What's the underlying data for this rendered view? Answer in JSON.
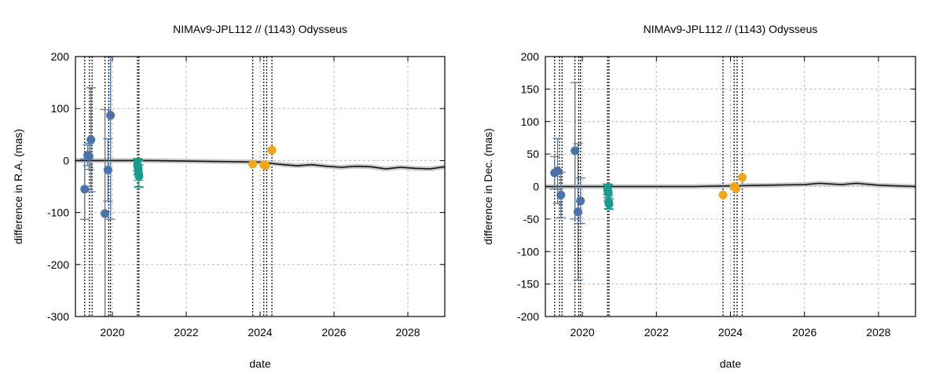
{
  "chart_data": [
    {
      "type": "scatter",
      "title": "NIMAv9-JPL112 // (1143) Odysseus",
      "xlabel": "date",
      "ylabel": "difference in R.A. (mas)",
      "xlim": [
        2019.0,
        2029.0
      ],
      "ylim": [
        -300,
        200
      ],
      "xticks": [
        "2020",
        "2022",
        "2024",
        "2026",
        "2028"
      ],
      "yticks": [
        "-300",
        "-200",
        "-100",
        "0",
        "100",
        "200"
      ],
      "grid": true,
      "vertical_dashed_lines": [
        2019.25,
        2019.38,
        2019.45,
        2019.8,
        2019.9,
        2019.95,
        2020.68,
        2020.72,
        2023.8,
        2024.1,
        2024.18,
        2024.32
      ],
      "model_curve": [
        [
          2019.0,
          0
        ],
        [
          2020,
          0
        ],
        [
          2021,
          0
        ],
        [
          2022,
          -1
        ],
        [
          2023,
          -2
        ],
        [
          2024,
          -3
        ],
        [
          2024.5,
          -7
        ],
        [
          2025,
          -10
        ],
        [
          2025.4,
          -8
        ],
        [
          2025.8,
          -11
        ],
        [
          2026.2,
          -13
        ],
        [
          2026.6,
          -11
        ],
        [
          2027,
          -12
        ],
        [
          2027.4,
          -16
        ],
        [
          2027.8,
          -13
        ],
        [
          2028.2,
          -15
        ],
        [
          2028.6,
          -16
        ],
        [
          2029,
          -12
        ]
      ],
      "series": [
        {
          "color": "#4a73a8",
          "points": [
            {
              "x": 2019.25,
              "y": -55,
              "err": 58
            },
            {
              "x": 2019.33,
              "y": 10,
              "err": 20
            },
            {
              "x": 2019.37,
              "y": 8,
              "err": 25
            },
            {
              "x": 2019.42,
              "y": 40,
              "err": 100
            },
            {
              "x": 2019.8,
              "y": -102,
              "err": 200
            },
            {
              "x": 2019.88,
              "y": -18,
              "err": 60
            },
            {
              "x": 2019.95,
              "y": 87,
              "err": 200
            }
          ]
        },
        {
          "color": "#1a9c8c",
          "points": [
            {
              "x": 2020.68,
              "y": -8,
              "err": 12
            },
            {
              "x": 2020.69,
              "y": -12,
              "err": 15
            },
            {
              "x": 2020.7,
              "y": -18,
              "err": 20
            },
            {
              "x": 2020.71,
              "y": -25,
              "err": 25
            },
            {
              "x": 2020.72,
              "y": -30,
              "err": 22
            }
          ]
        },
        {
          "color": "#f2a516",
          "points": [
            {
              "x": 2023.8,
              "y": -7,
              "err": 0
            },
            {
              "x": 2024.1,
              "y": -8,
              "err": 0
            },
            {
              "x": 2024.15,
              "y": -10,
              "err": 0
            },
            {
              "x": 2024.32,
              "y": 20,
              "err": 0
            }
          ]
        }
      ]
    },
    {
      "type": "scatter",
      "title": "NIMAv9-JPL112 // (1143) Odysseus",
      "xlabel": "date",
      "ylabel": "difference in Dec. (mas)",
      "xlim": [
        2019.0,
        2029.0
      ],
      "ylim": [
        -200,
        200
      ],
      "xticks": [
        "2020",
        "2022",
        "2024",
        "2026",
        "2028"
      ],
      "yticks": [
        "-200",
        "-150",
        "-100",
        "-50",
        "0",
        "50",
        "100",
        "150",
        "200"
      ],
      "grid": true,
      "vertical_dashed_lines": [
        2019.25,
        2019.38,
        2019.45,
        2019.8,
        2019.9,
        2019.95,
        2020.68,
        2020.72,
        2023.8,
        2024.1,
        2024.18,
        2024.32
      ],
      "model_curve": [
        [
          2019.0,
          0
        ],
        [
          2020,
          0
        ],
        [
          2021,
          0
        ],
        [
          2022,
          0
        ],
        [
          2023,
          0
        ],
        [
          2024,
          1
        ],
        [
          2025,
          2
        ],
        [
          2026,
          3
        ],
        [
          2026.4,
          5
        ],
        [
          2027,
          3
        ],
        [
          2027.4,
          5
        ],
        [
          2028,
          2
        ],
        [
          2029,
          0
        ]
      ],
      "series": [
        {
          "color": "#4a73a8",
          "points": [
            {
              "x": 2019.25,
              "y": 21,
              "err": 25
            },
            {
              "x": 2019.33,
              "y": 24,
              "err": 50
            },
            {
              "x": 2019.42,
              "y": -13,
              "err": 35
            },
            {
              "x": 2019.8,
              "y": 55,
              "err": 105
            },
            {
              "x": 2019.88,
              "y": -39,
              "err": 105
            },
            {
              "x": 2019.95,
              "y": -22,
              "err": 35
            }
          ]
        },
        {
          "color": "#1a9c8c",
          "points": [
            {
              "x": 2020.68,
              "y": -4,
              "err": 8
            },
            {
              "x": 2020.69,
              "y": -7,
              "err": 10
            },
            {
              "x": 2020.7,
              "y": -10,
              "err": 12
            },
            {
              "x": 2020.71,
              "y": -24,
              "err": 10
            },
            {
              "x": 2020.72,
              "y": -27,
              "err": 8
            }
          ]
        },
        {
          "color": "#f2a516",
          "points": [
            {
              "x": 2023.8,
              "y": -13,
              "err": 0
            },
            {
              "x": 2024.1,
              "y": 0,
              "err": 0
            },
            {
              "x": 2024.15,
              "y": -3,
              "err": 0
            },
            {
              "x": 2024.32,
              "y": 14,
              "err": 0
            }
          ]
        }
      ]
    }
  ]
}
